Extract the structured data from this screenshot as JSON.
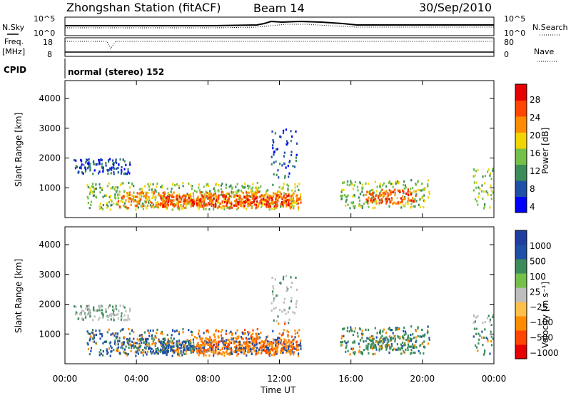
{
  "header": {
    "station_title": "Zhongshan Station (fitACF)",
    "beam_label": "Beam 14",
    "date_label": "30/Sep/2010"
  },
  "panels": {
    "sky": {
      "left_label": "N.Sky",
      "right_label": "N.Search",
      "left_ticks": [
        "10^5",
        "10^0"
      ],
      "right_ticks": [
        "10^5",
        "10^0"
      ]
    },
    "freq": {
      "left_label_top": "Freq.",
      "left_label_unit": "[MHz]",
      "right_label": "Nave",
      "left_ticks": [
        "18",
        "8"
      ],
      "right_ticks": [
        "80",
        "0"
      ]
    },
    "cpid": {
      "label": "CPID",
      "text": "normal (stereo) 152"
    }
  },
  "colors": {
    "power_scale": [
      "#0000ff",
      "#1f4fa6",
      "#3c8c5a",
      "#74c04a",
      "#f2d400",
      "#ff8c00",
      "#ff4500",
      "#e60000"
    ],
    "velocity_scale": [
      "#e60000",
      "#ff4500",
      "#ff8c00",
      "#ffc04a",
      "#bebebe",
      "#74c04a",
      "#3c8c5a",
      "#1f4fa6",
      "#1e3fa0"
    ]
  },
  "chart_data": [
    {
      "type": "heatmap",
      "name": "power",
      "ylabel": "Slant Range [km]",
      "y_ticks": [
        "4000",
        "3000",
        "2000",
        "1000"
      ],
      "colorbar_label": "Power [dB]",
      "colorbar_ticks": [
        "28",
        "24",
        "20",
        "16",
        "12",
        "8",
        "4"
      ],
      "x_ticks": [
        "00:00",
        "04:00",
        "08:00",
        "12:00",
        "16:00",
        "20:00",
        "00:00"
      ],
      "xlabel": "Time UT",
      "regions": [
        {
          "t0": 0.05,
          "t1": 0.55,
          "r0": 300,
          "r1": 1200,
          "level": 3
        },
        {
          "t0": 0.12,
          "t1": 0.55,
          "r0": 350,
          "r1": 900,
          "level": 5
        },
        {
          "t0": 0.22,
          "t1": 0.52,
          "r0": 400,
          "r1": 800,
          "level": 6
        },
        {
          "t0": 0.02,
          "t1": 0.15,
          "r0": 1500,
          "r1": 2000,
          "level": 1
        },
        {
          "t0": 0.48,
          "t1": 0.54,
          "r0": 1300,
          "r1": 3000,
          "level": 1
        },
        {
          "t0": 0.64,
          "t1": 0.85,
          "r0": 350,
          "r1": 1300,
          "level": 3
        },
        {
          "t0": 0.7,
          "t1": 0.82,
          "r0": 500,
          "r1": 1000,
          "level": 6
        },
        {
          "t0": 0.95,
          "t1": 1.0,
          "r0": 300,
          "r1": 1700,
          "level": 3
        },
        {
          "t0": 1.0,
          "t1": 1.0,
          "r0": 400,
          "r1": 1400,
          "level": 6
        }
      ]
    },
    {
      "type": "heatmap",
      "name": "velocity",
      "ylabel": "Slant Range [km]",
      "y_ticks": [
        "4000",
        "3000",
        "2000",
        "1000"
      ],
      "colorbar_label": "Velocity [m s⁻¹]",
      "colorbar_ticks": [
        "1000",
        "500",
        "100",
        "25",
        "−25",
        "−100",
        "−500",
        "−1000"
      ],
      "x_ticks": [
        "00:00",
        "04:00",
        "08:00",
        "12:00",
        "16:00",
        "20:00",
        "00:00"
      ],
      "xlabel": "Time UT"
    }
  ]
}
